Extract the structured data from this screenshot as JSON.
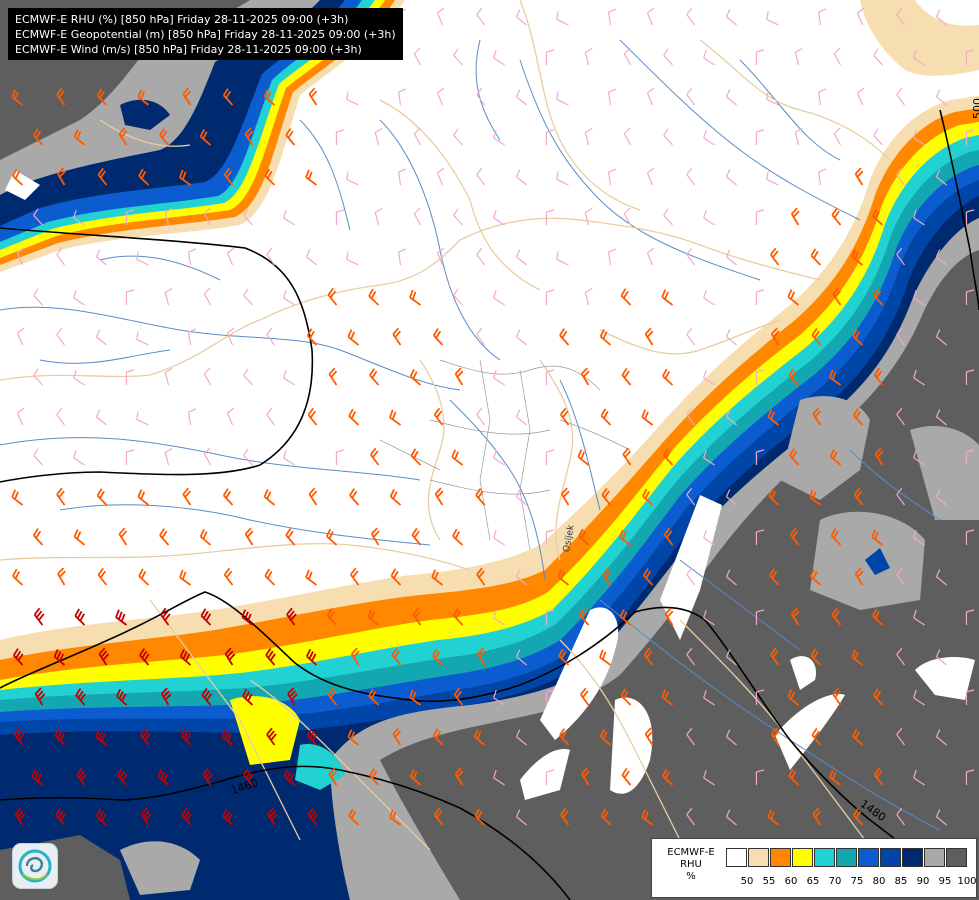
{
  "titles": [
    "ECMWF-E RHU (%) [850 hPa] Friday 28-11-2025 09:00 (+3h)",
    "ECMWF-E Geopotential (m) [850 hPa] Friday 28-11-2025 09:00 (+3h)",
    "ECMWF-E Wind (m/s) [850 hPa] Friday 28-11-2025 09:00 (+3h)"
  ],
  "contour_labels": [
    "500",
    "1460",
    "1480",
    "Osijek"
  ],
  "legend": {
    "title_lines": [
      "ECMWF-E",
      "RHU",
      "%"
    ],
    "ticks": [
      "50",
      "55",
      "60",
      "65",
      "70",
      "75",
      "80",
      "85",
      "90",
      "95",
      "100"
    ],
    "colors": [
      "#ffffff",
      "#f7deb0",
      "#ff8800",
      "#ffff00",
      "#22d2d2",
      "#13a7b2",
      "#0b5dcf",
      "#0046a8",
      "#002a70",
      "#a9a9a9",
      "#5e5e5e"
    ]
  },
  "colors": {
    "dry_background": "#ffffff",
    "wind_light": "#f4a8c8",
    "wind_moderate": "#ff5a00",
    "wind_strong": "#c40000",
    "rivers": "#5a8cc7",
    "borders": "#e8cda0",
    "geopotential_contours": "#000000"
  },
  "icons": [
    "logo-icon"
  ]
}
